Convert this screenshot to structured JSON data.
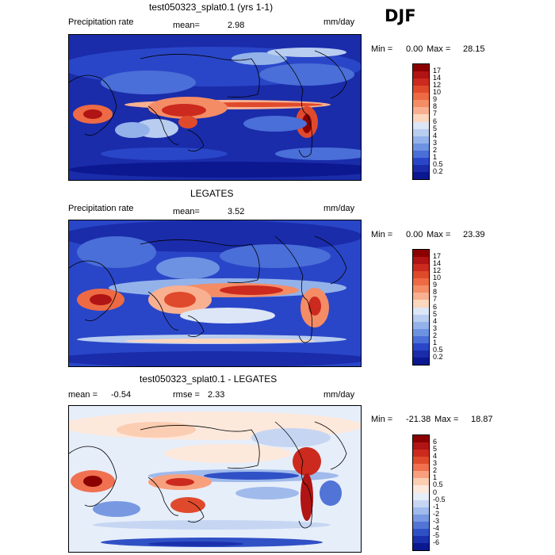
{
  "season": "DJF",
  "panels": [
    {
      "title": "test050323_splat0.1 (yrs 1-1)",
      "left_label": "Precipitation rate",
      "mean_label": "mean=",
      "mean_value": "2.98",
      "rmse_label": "",
      "rmse_value": "",
      "units": "mm/day",
      "min_label": "Min =",
      "min_value": "0.00",
      "max_label": "Max =",
      "max_value": "28.15",
      "levels": [
        "17",
        "14",
        "12",
        "10",
        "9",
        "8",
        "7",
        "6",
        "5",
        "4",
        "3",
        "2",
        "1",
        "0.5",
        "0.2"
      ],
      "colors": [
        "#8b0000",
        "#b01414",
        "#cc2a1e",
        "#e04a2c",
        "#ee6a44",
        "#f48c66",
        "#f8b090",
        "#fbd7be",
        "#dde6f7",
        "#b8cdf0",
        "#93b2ea",
        "#6d92e2",
        "#4a6fd8",
        "#2a46c8",
        "#1a2caa",
        "#0c1890"
      ]
    },
    {
      "title": "LEGATES",
      "left_label": "Precipitation rate",
      "mean_label": "mean=",
      "mean_value": "3.52",
      "rmse_label": "",
      "rmse_value": "",
      "units": "mm/day",
      "min_label": "Min =",
      "min_value": "0.00",
      "max_label": "Max =",
      "max_value": "23.39",
      "levels": [
        "17",
        "14",
        "12",
        "10",
        "9",
        "8",
        "7",
        "6",
        "5",
        "4",
        "3",
        "2",
        "1",
        "0.5",
        "0.2"
      ],
      "colors": [
        "#8b0000",
        "#b01414",
        "#cc2a1e",
        "#e04a2c",
        "#ee6a44",
        "#f48c66",
        "#f8b090",
        "#fbd7be",
        "#dde6f7",
        "#b8cdf0",
        "#93b2ea",
        "#6d92e2",
        "#4a6fd8",
        "#2a46c8",
        "#1a2caa",
        "#0c1890"
      ]
    },
    {
      "title": "test050323_splat0.1 - LEGATES",
      "left_label": "mean =",
      "mean_label": "",
      "mean_value": "-0.54",
      "rmse_label": "rmse =",
      "rmse_value": "2.33",
      "units": "mm/day",
      "min_label": "Min =",
      "min_value": "-21.38",
      "max_label": "Max =",
      "max_value": "18.87",
      "levels": [
        "6",
        "5",
        "4",
        "3",
        "2",
        "1",
        "0.5",
        "0",
        "-0.5",
        "-1",
        "-2",
        "-3",
        "-4",
        "-5",
        "-6"
      ],
      "colors": [
        "#8b0000",
        "#b01414",
        "#cc2a1e",
        "#e04a2c",
        "#f07050",
        "#f8a07e",
        "#fbcdb2",
        "#fde8dc",
        "#e6eefa",
        "#c6d6f2",
        "#9fbaeb",
        "#7898e2",
        "#5274d6",
        "#3050c6",
        "#1a30ac",
        "#0c1890"
      ]
    }
  ],
  "chart_data": [
    {
      "type": "heatmap",
      "title": "test050323_splat0.1 (yrs 1-1)",
      "variable": "Precipitation rate",
      "units": "mm/day",
      "mean": 2.98,
      "min": 0.0,
      "max": 28.15,
      "contour_levels": [
        0.2,
        0.5,
        1,
        2,
        3,
        4,
        5,
        6,
        7,
        8,
        9,
        10,
        12,
        14,
        17
      ]
    },
    {
      "type": "heatmap",
      "title": "LEGATES",
      "variable": "Precipitation rate",
      "units": "mm/day",
      "mean": 3.52,
      "min": 0.0,
      "max": 23.39,
      "contour_levels": [
        0.2,
        0.5,
        1,
        2,
        3,
        4,
        5,
        6,
        7,
        8,
        9,
        10,
        12,
        14,
        17
      ]
    },
    {
      "type": "heatmap",
      "title": "test050323_splat0.1 - LEGATES",
      "units": "mm/day",
      "mean": -0.54,
      "rmse": 2.33,
      "min": -21.38,
      "max": 18.87,
      "contour_levels": [
        -6,
        -5,
        -4,
        -3,
        -2,
        -1,
        -0.5,
        0,
        0.5,
        1,
        2,
        3,
        4,
        5,
        6
      ]
    }
  ]
}
